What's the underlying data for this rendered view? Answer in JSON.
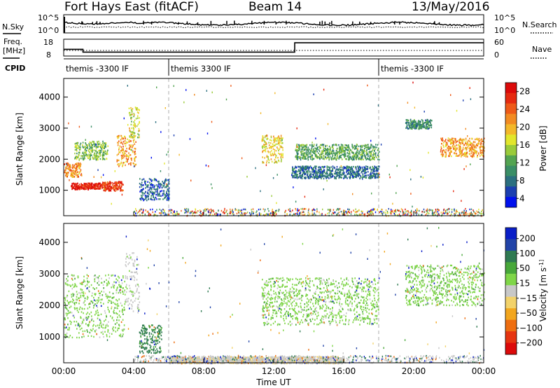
{
  "header": {
    "station": "Fort Hays East (fitACF)",
    "beam": "Beam 14",
    "date": "13/May/2016"
  },
  "summary": {
    "nsky_label": "N.Sky",
    "nsky_ticks": [
      "10^5",
      "10^0"
    ],
    "nsearch_label": "N.Search",
    "nsearch_ticks": [
      "10^5",
      "10^0"
    ],
    "freq_label": [
      "Freq.",
      "[MHz]"
    ],
    "freq_ticks": [
      "18",
      "8"
    ],
    "freq_mhz": [
      {
        "t": 0,
        "v": 12
      },
      {
        "t": 1.1,
        "v": 10.3
      },
      {
        "t": 13.2,
        "v": 15.9
      }
    ],
    "nave_label": "Nave",
    "nave_ticks": [
      "60",
      "0"
    ],
    "cpid_label": "CPID",
    "cpid_segments": [
      {
        "start": 0,
        "end": 6,
        "label": "themis -3300 IF"
      },
      {
        "start": 6,
        "end": 18,
        "label": "themis 3300 IF"
      },
      {
        "start": 18,
        "end": 24,
        "label": "themis -3300 IF"
      }
    ]
  },
  "chart_data": [
    {
      "type": "heatmap",
      "name": "power",
      "ylabel": "Slant Range [km]",
      "xlabel": "",
      "xlim": [
        0,
        24
      ],
      "ylim": [
        180,
        4600
      ],
      "yticks": [
        1000,
        2000,
        3000,
        4000
      ],
      "colorbar_label": "Power [dB]",
      "colorbar_ticks": [
        4,
        8,
        12,
        16,
        20,
        24,
        28
      ],
      "colors": [
        "#0010ee",
        "#1b3fb0",
        "#2b6f7f",
        "#3a8e66",
        "#53a451",
        "#9acb3a",
        "#e2e62c",
        "#f3b82a",
        "#f28b22",
        "#ee5a18",
        "#e62a10",
        "#dc0a0a"
      ],
      "features": [
        {
          "t0": 0.0,
          "t1": 1.0,
          "r0": 1450,
          "r1": 1900,
          "v": 22
        },
        {
          "t0": 0.4,
          "t1": 2.2,
          "r0": 1050,
          "r1": 1250,
          "v": 28
        },
        {
          "t0": 2.2,
          "t1": 3.4,
          "r0": 1000,
          "r1": 1300,
          "v": 26
        },
        {
          "t0": 3.0,
          "t1": 4.1,
          "r0": 1800,
          "r1": 2800,
          "v": 21
        },
        {
          "t0": 3.7,
          "t1": 4.3,
          "r0": 2700,
          "r1": 3700,
          "v": 17
        },
        {
          "t0": 0.6,
          "t1": 2.5,
          "r0": 2000,
          "r1": 2600,
          "v": 14
        },
        {
          "t0": 4.3,
          "t1": 6.0,
          "r0": 700,
          "r1": 1400,
          "v": 7
        },
        {
          "t0": 11.3,
          "t1": 12.5,
          "r0": 1900,
          "r1": 2800,
          "v": 18
        },
        {
          "t0": 13.2,
          "t1": 18.0,
          "r0": 2000,
          "r1": 2500,
          "v": 12
        },
        {
          "t0": 13.0,
          "t1": 18.0,
          "r0": 1400,
          "r1": 1800,
          "v": 8
        },
        {
          "t0": 19.5,
          "t1": 21.0,
          "r0": 3000,
          "r1": 3300,
          "v": 10
        },
        {
          "t0": 21.5,
          "t1": 24.0,
          "r0": 2100,
          "r1": 2700,
          "v": 21
        }
      ]
    },
    {
      "type": "heatmap",
      "name": "velocity",
      "ylabel": "Slant Range [km]",
      "xlabel": "Time UT",
      "xlim": [
        0,
        24
      ],
      "ylim": [
        180,
        4600
      ],
      "yticks": [
        1000,
        2000,
        3000,
        4000
      ],
      "xticks": [
        "00:00",
        "04:00",
        "08:00",
        "12:00",
        "16:00",
        "20:00",
        "00:00"
      ],
      "colorbar_label": "Velocity [m s^-1]",
      "colorbar_ticks": [
        200,
        100,
        50,
        15,
        -15,
        -50,
        -100,
        -200
      ],
      "colors": [
        "#0a1fc8",
        "#2244a8",
        "#2f7a52",
        "#48a83a",
        "#7fd648",
        "#c8c8c8",
        "#f2d26a",
        "#f2a61e",
        "#ee6e10",
        "#e63410",
        "#dc0a0a"
      ],
      "features": [
        {
          "t0": 0.0,
          "t1": 3.5,
          "r0": 1000,
          "r1": 3000,
          "v": 0
        },
        {
          "t0": 3.5,
          "t1": 4.3,
          "r0": 1800,
          "r1": 3700,
          "v": -30
        },
        {
          "t0": 4.3,
          "t1": 5.6,
          "r0": 500,
          "r1": 1400,
          "v": 60
        },
        {
          "t0": 6.0,
          "t1": 16.0,
          "r0": 180,
          "r1": 400,
          "v": -40
        },
        {
          "t0": 11.3,
          "t1": 18.0,
          "r0": 1400,
          "r1": 2900,
          "v": 0
        },
        {
          "t0": 19.5,
          "t1": 24.0,
          "r0": 2000,
          "r1": 3300,
          "v": 0
        }
      ]
    }
  ]
}
